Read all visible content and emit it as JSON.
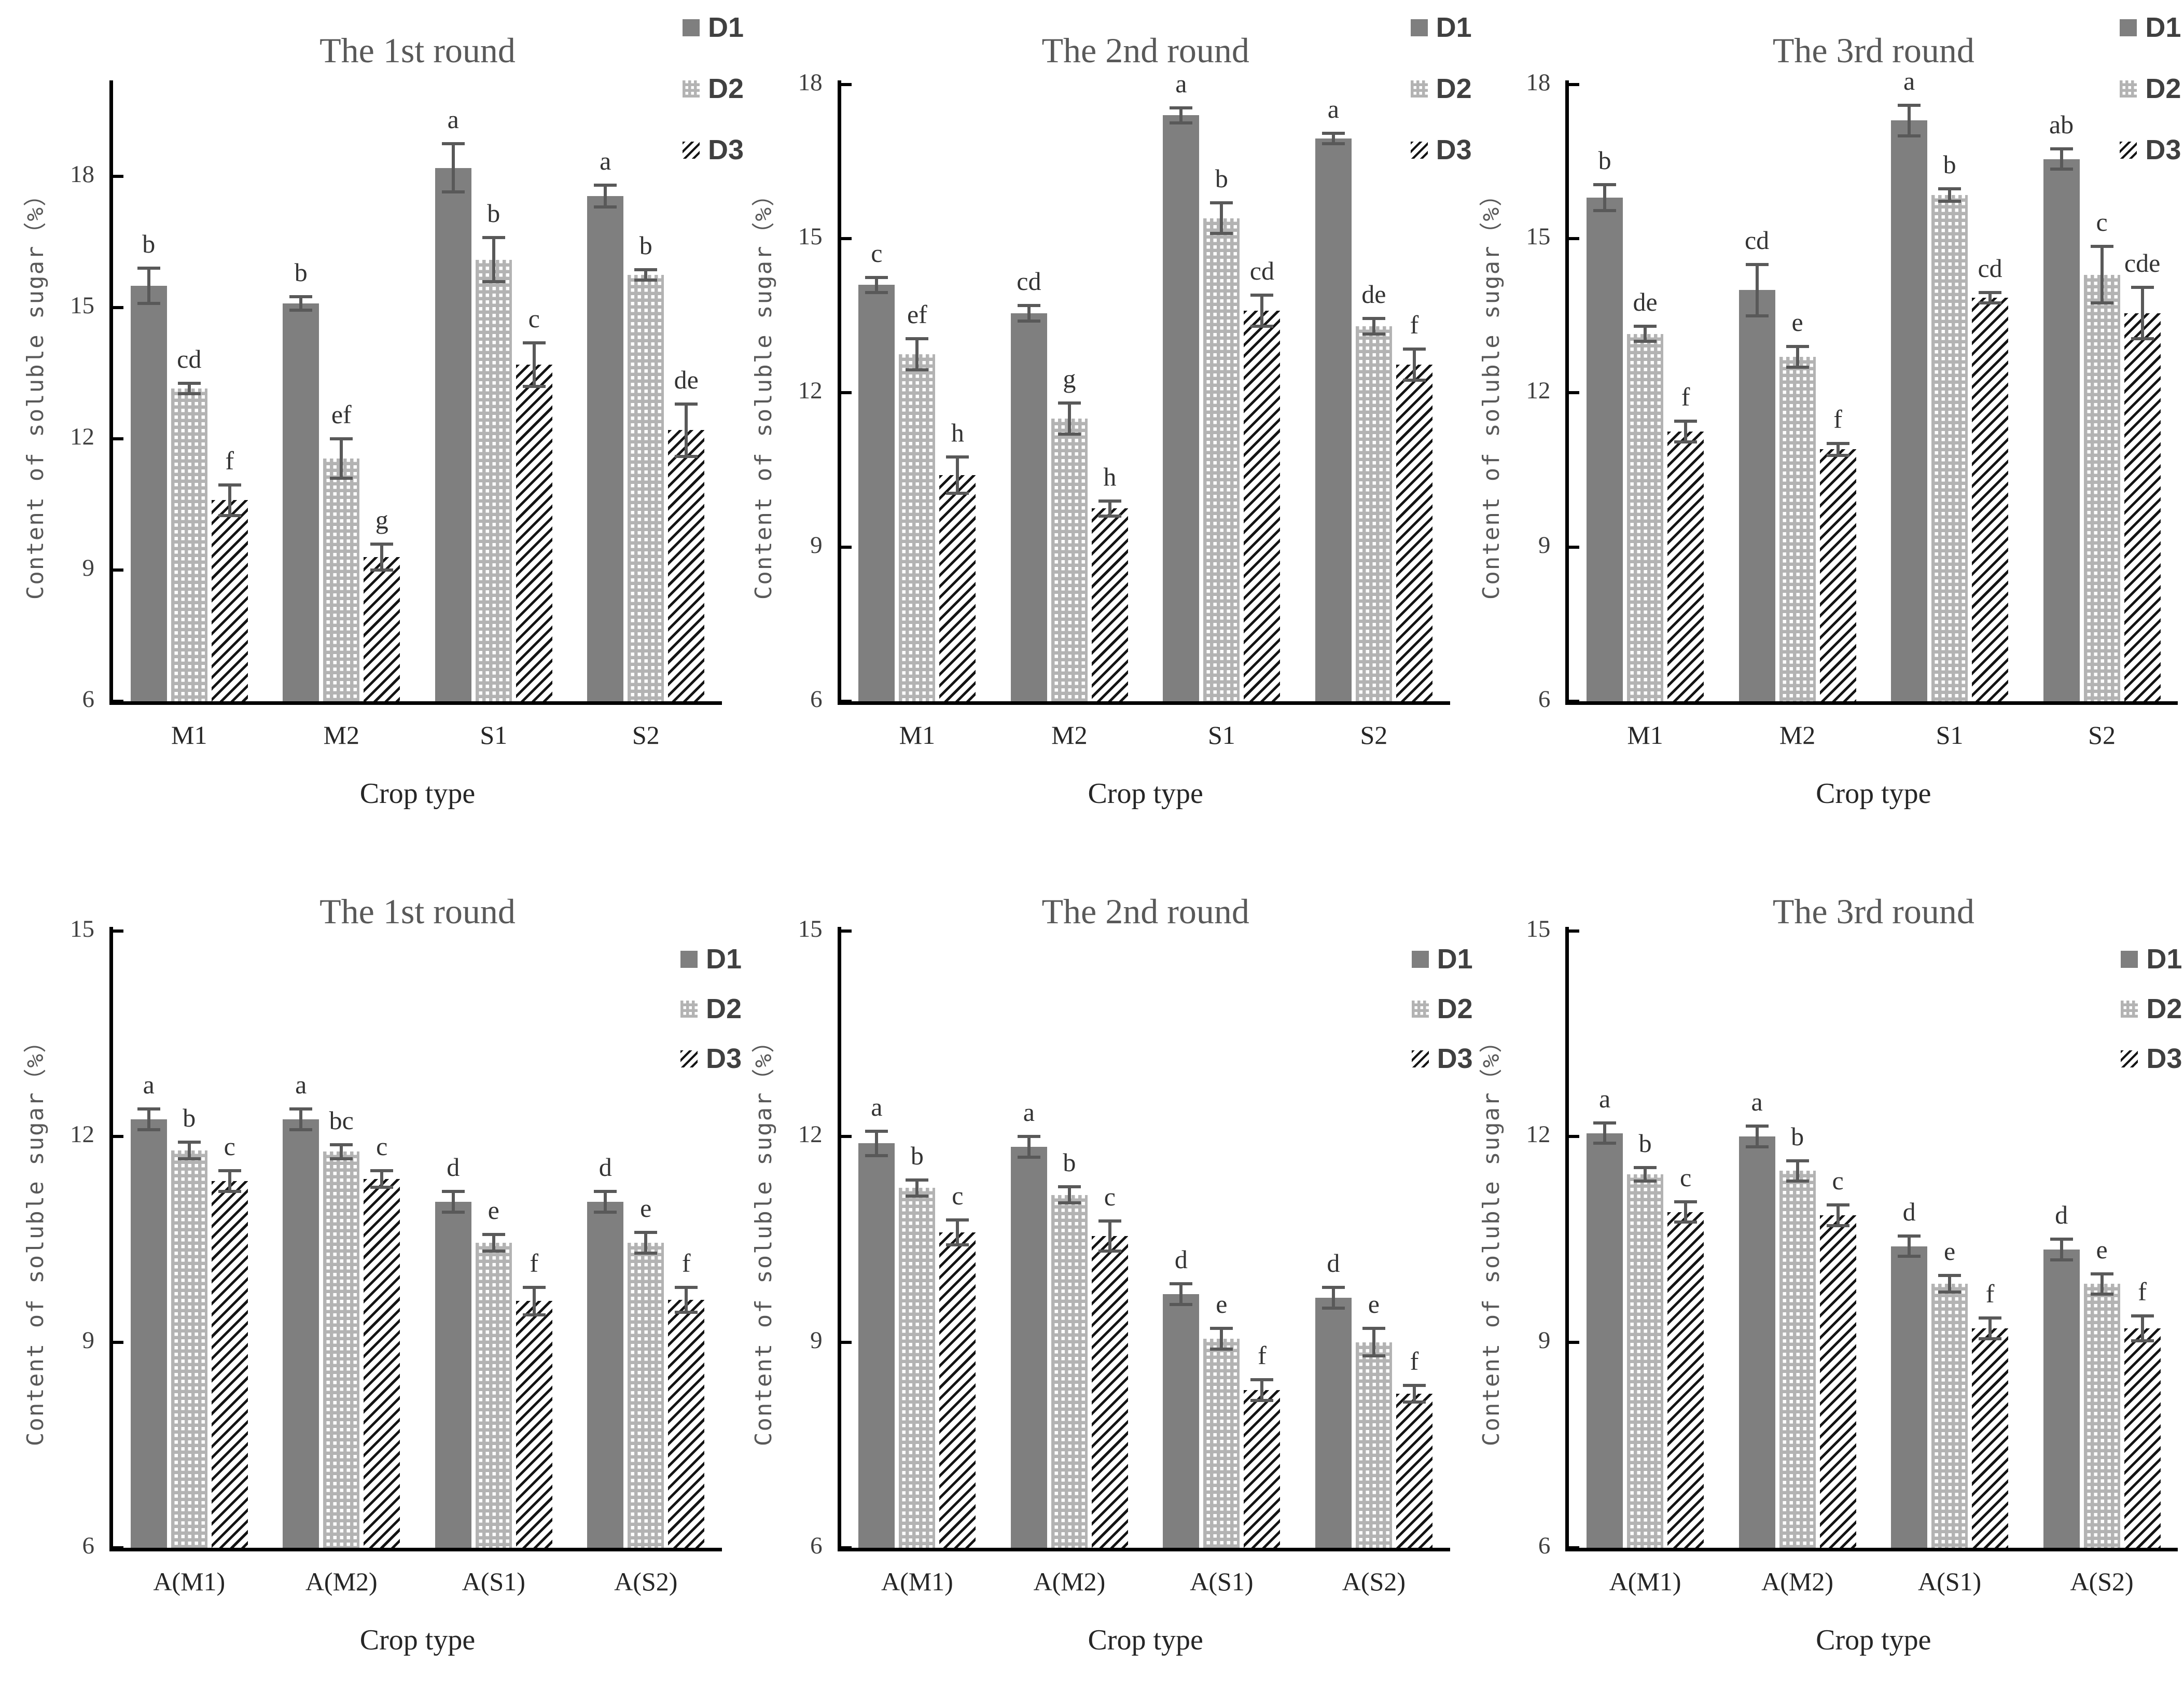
{
  "figure": {
    "background": "#ffffff",
    "colors": {
      "d1_fill": "#7f7f7f",
      "d2_fill": "#b3b3b3",
      "d2_dot": "#ffffff",
      "d3_stripe": "#141414",
      "axis": "#000000",
      "title_text": "#595959",
      "tick_text": "#404040",
      "error_bar": "#595959"
    }
  },
  "chart_data": [
    {
      "type": "bar",
      "title": "The 1st round",
      "xlabel": "Crop type",
      "ylabel": "Content of soluble sugar（%）",
      "categories": [
        "M1",
        "M2",
        "S1",
        "S2"
      ],
      "yticks": [
        6,
        9,
        12,
        15,
        18
      ],
      "ylim": [
        6,
        20.2
      ],
      "grid": false,
      "legend_position": "outside-top-right",
      "legend": [
        "D1",
        "D2",
        "D3"
      ],
      "series": [
        {
          "name": "D1",
          "values": [
            15.5,
            15.1,
            18.2,
            17.55
          ],
          "errors": [
            0.4,
            0.15,
            0.55,
            0.25
          ],
          "letters": [
            "b",
            "b",
            "a",
            "a"
          ]
        },
        {
          "name": "D2",
          "values": [
            13.15,
            11.55,
            16.1,
            15.75
          ],
          "errors": [
            0.12,
            0.45,
            0.5,
            0.12
          ],
          "letters": [
            "cd",
            "ef",
            "b",
            "b"
          ]
        },
        {
          "name": "D3",
          "values": [
            10.6,
            9.3,
            13.7,
            12.2
          ],
          "errors": [
            0.35,
            0.3,
            0.5,
            0.6
          ],
          "letters": [
            "f",
            "g",
            "c",
            "de"
          ]
        }
      ]
    },
    {
      "type": "bar",
      "title": "The 2nd round",
      "xlabel": "Crop type",
      "ylabel": "Content of soluble sugar（%）",
      "categories": [
        "M1",
        "M2",
        "S1",
        "S2"
      ],
      "yticks": [
        6,
        9,
        12,
        15,
        18
      ],
      "ylim": [
        6,
        18.08
      ],
      "grid": false,
      "legend_position": "outside-top-right",
      "legend": [
        "D1",
        "D2",
        "D3"
      ],
      "series": [
        {
          "name": "D1",
          "values": [
            14.1,
            13.55,
            17.4,
            16.95
          ],
          "errors": [
            0.15,
            0.15,
            0.15,
            0.1
          ],
          "letters": [
            "c",
            "cd",
            "a",
            "a"
          ]
        },
        {
          "name": "D2",
          "values": [
            12.75,
            11.5,
            15.4,
            13.3
          ],
          "errors": [
            0.3,
            0.3,
            0.3,
            0.15
          ],
          "letters": [
            "ef",
            "g",
            "b",
            "de"
          ]
        },
        {
          "name": "D3",
          "values": [
            10.4,
            9.75,
            13.6,
            12.55
          ],
          "errors": [
            0.35,
            0.15,
            0.3,
            0.3
          ],
          "letters": [
            "h",
            "h",
            "cd",
            "f"
          ]
        }
      ]
    },
    {
      "type": "bar",
      "title": "The 3rd round",
      "xlabel": "Crop type",
      "ylabel": "Content of soluble sugar（%）",
      "categories": [
        "M1",
        "M2",
        "S1",
        "S2"
      ],
      "yticks": [
        6,
        9,
        12,
        15,
        18
      ],
      "ylim": [
        6,
        18.08
      ],
      "grid": false,
      "legend_position": "outside-top-right",
      "legend": [
        "D1",
        "D2",
        "D3"
      ],
      "series": [
        {
          "name": "D1",
          "values": [
            15.8,
            14.0,
            17.3,
            16.55
          ],
          "errors": [
            0.25,
            0.5,
            0.3,
            0.2
          ],
          "letters": [
            "b",
            "cd",
            "a",
            "ab"
          ]
        },
        {
          "name": "D2",
          "values": [
            13.15,
            12.7,
            15.85,
            14.3
          ],
          "errors": [
            0.15,
            0.2,
            0.12,
            0.55
          ],
          "letters": [
            "de",
            "e",
            "b",
            "c"
          ]
        },
        {
          "name": "D3",
          "values": [
            11.25,
            10.9,
            13.85,
            13.55
          ],
          "errors": [
            0.2,
            0.12,
            0.1,
            0.5
          ],
          "letters": [
            "f",
            "f",
            "cd",
            "cde"
          ]
        }
      ]
    },
    {
      "type": "bar",
      "title": "The 1st round",
      "xlabel": "Crop type",
      "ylabel": "Content of soluble sugar（%）",
      "categories": [
        "A(M1)",
        "A(M2)",
        "A(S1)",
        "A(S2)"
      ],
      "yticks": [
        6,
        9,
        12,
        15
      ],
      "ylim": [
        6,
        15.06
      ],
      "grid": false,
      "legend_position": "inside-top-right",
      "legend": [
        "D1",
        "D2",
        "D3"
      ],
      "series": [
        {
          "name": "D1",
          "values": [
            12.25,
            12.25,
            11.05,
            11.05
          ],
          "errors": [
            0.15,
            0.15,
            0.15,
            0.15
          ],
          "letters": [
            "a",
            "a",
            "d",
            "d"
          ]
        },
        {
          "name": "D2",
          "values": [
            11.8,
            11.78,
            10.45,
            10.45
          ],
          "errors": [
            0.12,
            0.1,
            0.12,
            0.15
          ],
          "letters": [
            "b",
            "bc",
            "e",
            "e"
          ]
        },
        {
          "name": "D3",
          "values": [
            11.35,
            11.38,
            9.6,
            9.62
          ],
          "errors": [
            0.15,
            0.12,
            0.2,
            0.18
          ],
          "letters": [
            "c",
            "c",
            "f",
            "f"
          ]
        }
      ]
    },
    {
      "type": "bar",
      "title": "The 2nd round",
      "xlabel": "Crop type",
      "ylabel": "Content of soluble sugar（%）",
      "categories": [
        "A(M1)",
        "A(M2)",
        "A(S1)",
        "A(S2)"
      ],
      "yticks": [
        6,
        9,
        12,
        15
      ],
      "ylim": [
        6,
        15.06
      ],
      "grid": false,
      "legend_position": "inside-top-right",
      "legend": [
        "D1",
        "D2",
        "D3"
      ],
      "series": [
        {
          "name": "D1",
          "values": [
            11.9,
            11.85,
            9.7,
            9.65
          ],
          "errors": [
            0.18,
            0.15,
            0.15,
            0.15
          ],
          "letters": [
            "a",
            "a",
            "d",
            "d"
          ]
        },
        {
          "name": "D2",
          "values": [
            11.25,
            11.15,
            9.05,
            9.0
          ],
          "errors": [
            0.12,
            0.12,
            0.15,
            0.2
          ],
          "letters": [
            "b",
            "b",
            "e",
            "e"
          ]
        },
        {
          "name": "D3",
          "values": [
            10.6,
            10.55,
            8.3,
            8.25
          ],
          "errors": [
            0.18,
            0.22,
            0.15,
            0.12
          ],
          "letters": [
            "c",
            "c",
            "f",
            "f"
          ]
        }
      ]
    },
    {
      "type": "bar",
      "title": "The 3rd round",
      "xlabel": "Crop type",
      "ylabel": "Content of soluble sugar（%）",
      "categories": [
        "A(M1)",
        "A(M2)",
        "A(S1)",
        "A(S2)"
      ],
      "yticks": [
        6,
        9,
        12,
        15
      ],
      "ylim": [
        6,
        15.06
      ],
      "grid": false,
      "legend_position": "inside-top-right",
      "legend": [
        "D1",
        "D2",
        "D3"
      ],
      "series": [
        {
          "name": "D1",
          "values": [
            12.05,
            12.0,
            10.4,
            10.35
          ],
          "errors": [
            0.15,
            0.15,
            0.15,
            0.15
          ],
          "letters": [
            "a",
            "a",
            "d",
            "d"
          ]
        },
        {
          "name": "D2",
          "values": [
            11.45,
            11.5,
            9.85,
            9.85
          ],
          "errors": [
            0.1,
            0.15,
            0.12,
            0.15
          ],
          "letters": [
            "b",
            "b",
            "e",
            "e"
          ]
        },
        {
          "name": "D3",
          "values": [
            10.9,
            10.85,
            9.2,
            9.2
          ],
          "errors": [
            0.15,
            0.15,
            0.15,
            0.18
          ],
          "letters": [
            "c",
            "c",
            "f",
            "f"
          ]
        }
      ]
    }
  ]
}
